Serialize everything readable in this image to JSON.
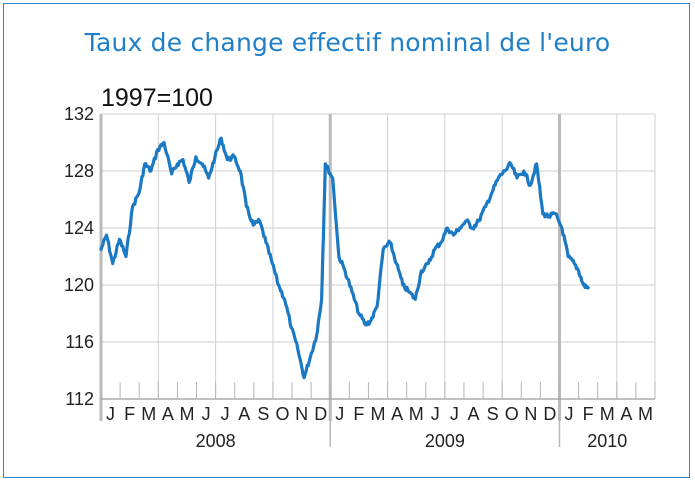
{
  "chart_data": {
    "type": "line",
    "title": "Taux de change effectif nominal de l'euro",
    "unit_label": "1997=100",
    "ylim": [
      112,
      132
    ],
    "y_ticks": [
      "132",
      "128",
      "124",
      "120",
      "116",
      "112"
    ],
    "x_range": [
      "2008-01",
      "2010-05"
    ],
    "month_labels": [
      "J",
      "F",
      "M",
      "A",
      "M",
      "J",
      "J",
      "A",
      "S",
      "O",
      "N",
      "D",
      "J",
      "F",
      "M",
      "A",
      "M",
      "J",
      "J",
      "A",
      "S",
      "O",
      "N",
      "D",
      "J",
      "F",
      "M",
      "A",
      "M"
    ],
    "year_labels": [
      "2008",
      "2009",
      "2010"
    ],
    "grid": true,
    "legend": "none",
    "colors": {
      "line": "#1b79c4",
      "title": "#1f7fc8",
      "grid": "#cfcfcf",
      "year_separator": "#b9b9b9",
      "frame": "#2f86c9"
    },
    "series": [
      {
        "x": [
          "2008-01-01",
          "2008-01-10",
          "2008-01-20",
          "2008-01-31",
          "2008-02-10",
          "2008-02-20",
          "2008-03-01",
          "2008-03-10",
          "2008-03-20",
          "2008-03-31",
          "2008-04-10",
          "2008-04-22",
          "2008-05-01",
          "2008-05-10",
          "2008-05-20",
          "2008-05-31",
          "2008-06-10",
          "2008-06-20",
          "2008-06-30",
          "2008-07-10",
          "2008-07-20",
          "2008-07-31",
          "2008-08-10",
          "2008-08-20",
          "2008-08-31",
          "2008-09-10",
          "2008-09-20",
          "2008-09-30",
          "2008-10-10",
          "2008-10-20",
          "2008-10-31",
          "2008-11-10",
          "2008-11-20",
          "2008-11-30",
          "2008-12-10",
          "2008-12-18",
          "2008-12-24",
          "2009-01-05",
          "2009-01-15",
          "2009-01-25",
          "2009-02-05",
          "2009-02-15",
          "2009-02-25",
          "2009-03-05",
          "2009-03-15",
          "2009-03-25",
          "2009-04-05",
          "2009-04-15",
          "2009-04-25",
          "2009-05-05",
          "2009-05-15",
          "2009-05-25",
          "2009-06-05",
          "2009-06-15",
          "2009-06-25",
          "2009-07-05",
          "2009-07-15",
          "2009-07-25",
          "2009-08-05",
          "2009-08-15",
          "2009-08-25",
          "2009-09-05",
          "2009-09-15",
          "2009-09-25",
          "2009-10-05",
          "2009-10-15",
          "2009-10-25",
          "2009-11-05",
          "2009-11-15",
          "2009-11-25",
          "2009-12-05",
          "2009-12-15",
          "2009-12-25",
          "2010-01-05",
          "2010-01-15",
          "2010-01-25",
          "2010-02-01",
          "2010-02-08",
          "2010-02-15"
        ],
        "values": [
          122.5,
          123.5,
          121.5,
          123.2,
          122.0,
          125.5,
          126.5,
          128.5,
          128.0,
          129.5,
          130.0,
          127.8,
          128.5,
          128.8,
          127.2,
          129.0,
          128.5,
          127.5,
          129.0,
          130.3,
          128.8,
          129.0,
          128.0,
          125.5,
          124.2,
          124.5,
          123.0,
          121.5,
          120.0,
          119.0,
          117.0,
          115.5,
          113.5,
          115.0,
          116.5,
          119.0,
          128.5,
          127.5,
          122.0,
          121.0,
          119.5,
          118.0,
          117.2,
          117.5,
          118.5,
          122.5,
          123.0,
          121.5,
          120.0,
          119.5,
          119.0,
          121.0,
          121.5,
          122.5,
          123.0,
          124.0,
          123.5,
          124.0,
          124.5,
          124.0,
          124.5,
          125.5,
          126.5,
          127.5,
          128.0,
          128.5,
          127.5,
          128.0,
          127.0,
          128.5,
          125.0,
          124.8,
          125.0,
          124.0,
          122.0,
          121.5,
          121.0,
          120.0,
          119.8
        ]
      }
    ]
  }
}
